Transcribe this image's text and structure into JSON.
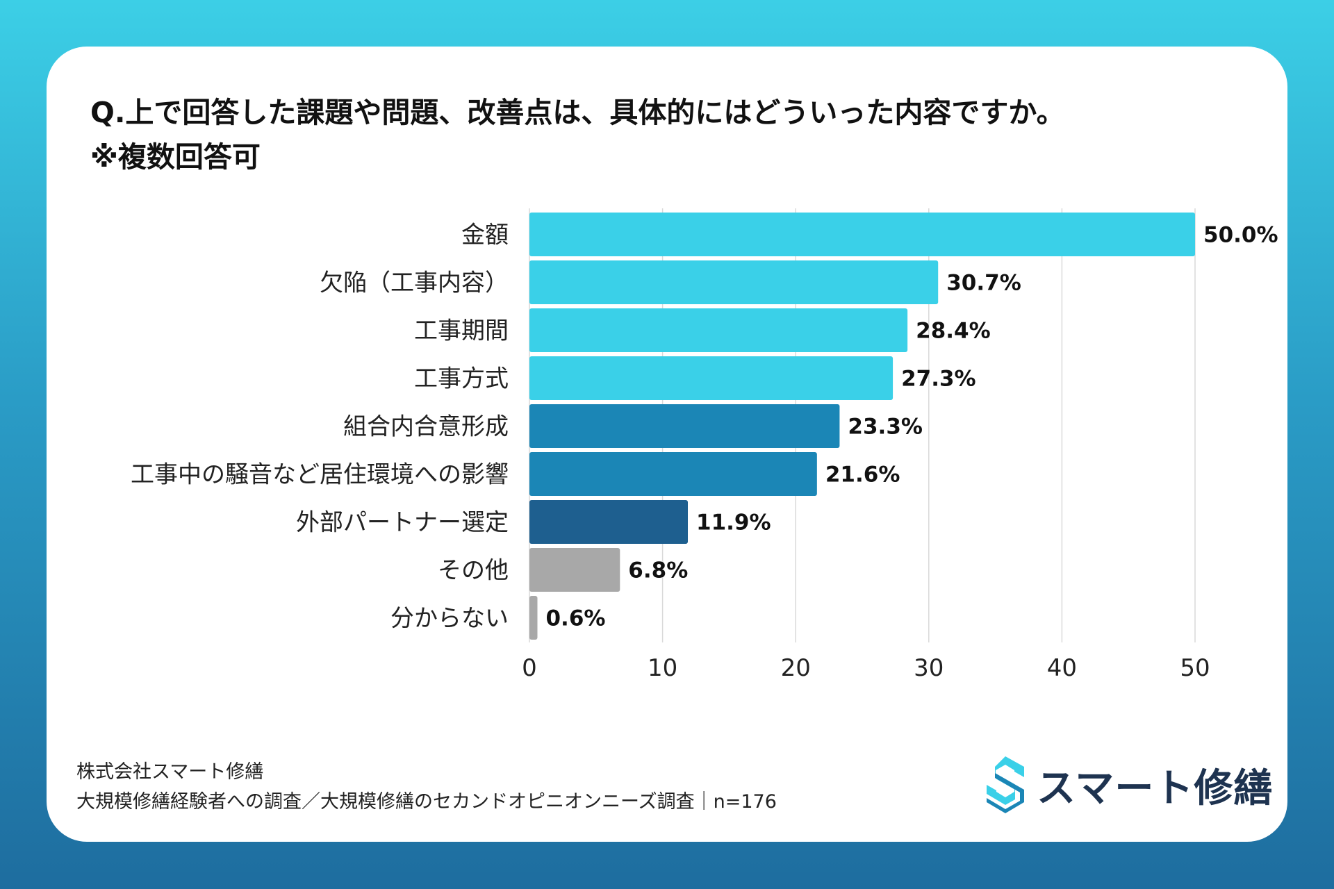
{
  "title": {
    "line1": "Q.上で回答した課題や問題、改善点は、具体的にはどういった内容ですか。",
    "line2": "※複数回答可"
  },
  "chart_data": {
    "type": "bar",
    "orientation": "horizontal",
    "title": "Q.上で回答した課題や問題、改善点は、具体的にはどういった内容ですか。※複数回答可",
    "categories": [
      "金額",
      "欠陥（工事内容）",
      "工事期間",
      "工事方式",
      "組合内合意形成",
      "工事中の騒音など居住環境への影響",
      "外部パートナー選定",
      "その他",
      "分からない"
    ],
    "values": [
      50.0,
      30.7,
      28.4,
      27.3,
      23.3,
      21.6,
      11.9,
      6.8,
      0.6
    ],
    "value_labels": [
      "50.0%",
      "30.7%",
      "28.4%",
      "27.3%",
      "23.3%",
      "21.6%",
      "11.9%",
      "6.8%",
      "0.6%"
    ],
    "colors": [
      "#3ad0e8",
      "#3ad0e8",
      "#3ad0e8",
      "#3ad0e8",
      "#1b86b6",
      "#1b86b6",
      "#1e5f8f",
      "#a8a8a8",
      "#a8a8a8"
    ],
    "xlim": [
      0,
      50
    ],
    "xticks": [
      "0",
      "10",
      "20",
      "30",
      "40",
      "50"
    ],
    "grid": true
  },
  "footer": {
    "company": "株式会社スマート修繕",
    "survey": "大規模修繕経験者への調査／大規模修繕のセカンドオピニオンニーズ調査｜n=176"
  },
  "logo": {
    "text": "スマート修繕",
    "colors": [
      "#3ad0e8",
      "#1b86b6",
      "#1e3350"
    ]
  }
}
